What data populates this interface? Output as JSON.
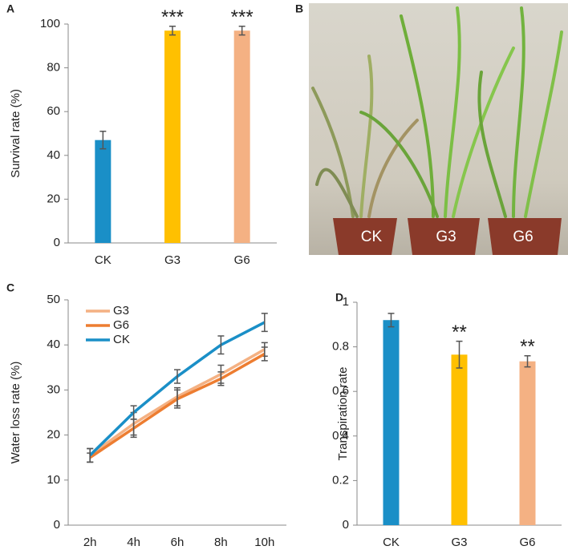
{
  "chart_data": [
    {
      "panel": "A",
      "type": "bar",
      "ylabel": "Survival rate (%)",
      "categories": [
        "CK",
        "G3",
        "G6"
      ],
      "values": [
        47,
        97,
        97
      ],
      "errors": [
        4,
        2,
        2
      ],
      "colors": [
        "#1a8fc7",
        "#ffc000",
        "#f4b183"
      ],
      "annotations": [
        null,
        "***",
        "***"
      ],
      "ylim": [
        0,
        100
      ],
      "yticks": [
        0,
        20,
        40,
        60,
        80,
        100
      ],
      "grid": false
    },
    {
      "panel": "C",
      "type": "line",
      "ylabel": "Water loss rate (%)",
      "categories": [
        "2h",
        "4h",
        "6h",
        "8h",
        "10h"
      ],
      "series": [
        {
          "name": "G3",
          "color": "#f4b183",
          "values": [
            15.5,
            22.5,
            28.5,
            33.5,
            39
          ],
          "errors": [
            1.5,
            2.5,
            2,
            2,
            1.5
          ]
        },
        {
          "name": "G6",
          "color": "#ed7d31",
          "values": [
            15,
            21.5,
            28,
            32.5,
            38
          ],
          "errors": [
            1,
            2,
            2,
            1.5,
            1.5
          ]
        },
        {
          "name": "CK",
          "color": "#1a8fc7",
          "values": [
            15.5,
            25,
            33,
            40,
            45
          ],
          "errors": [
            1.5,
            1.5,
            1.5,
            2,
            2
          ]
        }
      ],
      "ylim": [
        0,
        50
      ],
      "yticks": [
        0,
        10,
        20,
        30,
        40,
        50
      ],
      "grid": false,
      "legend": "top-left"
    },
    {
      "panel": "D",
      "type": "bar",
      "ylabel": "Transpiration rate",
      "categories": [
        "CK",
        "G3",
        "G6"
      ],
      "values": [
        0.92,
        0.765,
        0.735
      ],
      "errors": [
        0.03,
        0.06,
        0.025
      ],
      "colors": [
        "#1a8fc7",
        "#ffc000",
        "#f4b183"
      ],
      "annotations": [
        null,
        "**",
        "**"
      ],
      "ylim": [
        0,
        1
      ],
      "yticks": [
        0,
        0.2,
        0.4,
        0.6,
        0.8,
        1
      ],
      "grid": false
    }
  ],
  "photo": {
    "panel": "B",
    "labels": [
      "CK",
      "G3",
      "G6"
    ]
  }
}
